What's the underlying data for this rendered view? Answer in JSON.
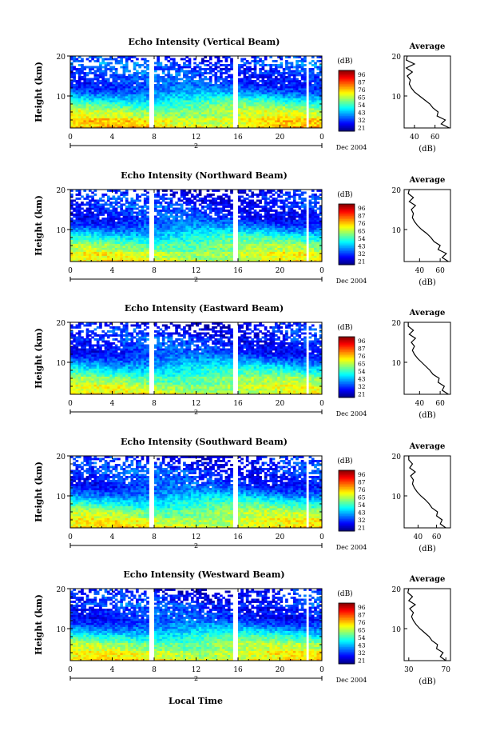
{
  "figure": {
    "xlabel": "Local Time",
    "date_label": "Dec 2004",
    "colorbar_unit": "(dB)",
    "colorbar_ticks": [
      "96",
      "87",
      "76",
      "65",
      "54",
      "43",
      "32",
      "21"
    ],
    "avg_title": "Average",
    "avg_xlabel": "(dB)",
    "ylabel": "Height (km)",
    "day_marker": "2"
  },
  "chart_data": [
    {
      "type": "heatmap",
      "title": "Echo Intensity (Vertical Beam)",
      "ylabel": "Height (km)",
      "xlabel": "Local Time",
      "x_ticks": [
        "0",
        "4",
        "8",
        "12",
        "16",
        "20",
        "0"
      ],
      "xlim": [
        0,
        24
      ],
      "y_ticks": [
        "20",
        "10"
      ],
      "ylim": [
        2,
        20
      ],
      "colorbar": {
        "unit": "dB",
        "range": [
          21,
          96
        ],
        "ticks": [
          "96",
          "87",
          "76",
          "65",
          "54",
          "43",
          "32",
          "21"
        ]
      },
      "data_gaps_hours": [
        [
          7.6,
          8.0
        ],
        [
          15.6,
          16.0
        ],
        [
          22.4,
          22.8
        ]
      ],
      "average_profile": {
        "xlim": [
          30,
          75
        ],
        "x_ticks": [
          "40",
          "60"
        ],
        "xlabel": "(dB)",
        "height_km": [
          2,
          3,
          4,
          5,
          6,
          7,
          8,
          9,
          10,
          11,
          12,
          13,
          14,
          15,
          16,
          17,
          18,
          19,
          20
        ],
        "db": [
          74,
          66,
          70,
          62,
          63,
          58,
          55,
          50,
          45,
          40,
          37,
          35,
          36,
          33,
          38,
          32,
          40,
          32,
          33
        ]
      }
    },
    {
      "type": "heatmap",
      "title": "Echo Intensity (Northward Beam)",
      "ylabel": "Height (km)",
      "xlabel": "Local Time",
      "x_ticks": [
        "0",
        "4",
        "8",
        "12",
        "16",
        "20",
        "0"
      ],
      "xlim": [
        0,
        24
      ],
      "y_ticks": [
        "20",
        "10"
      ],
      "ylim": [
        2,
        20
      ],
      "colorbar": {
        "unit": "dB",
        "range": [
          21,
          96
        ],
        "ticks": [
          "96",
          "87",
          "76",
          "65",
          "54",
          "43",
          "32",
          "21"
        ]
      },
      "data_gaps_hours": [
        [
          7.6,
          8.0
        ],
        [
          15.6,
          16.0
        ],
        [
          22.4,
          22.8
        ]
      ],
      "average_profile": {
        "xlim": [
          25,
          70
        ],
        "x_ticks": [
          "40",
          "60"
        ],
        "xlabel": "(dB)",
        "height_km": [
          2,
          3,
          4,
          5,
          6,
          7,
          8,
          9,
          10,
          11,
          12,
          13,
          14,
          15,
          16,
          17,
          18,
          19,
          20
        ],
        "db": [
          68,
          62,
          66,
          58,
          60,
          54,
          51,
          47,
          42,
          38,
          35,
          33,
          34,
          32,
          36,
          30,
          34,
          29,
          30
        ]
      }
    },
    {
      "type": "heatmap",
      "title": "Echo Intensity (Eastward Beam)",
      "ylabel": "Height (km)",
      "xlabel": "Local Time",
      "x_ticks": [
        "0",
        "4",
        "8",
        "12",
        "16",
        "20",
        "0"
      ],
      "xlim": [
        0,
        24
      ],
      "y_ticks": [
        "20",
        "10"
      ],
      "ylim": [
        2,
        20
      ],
      "colorbar": {
        "unit": "dB",
        "range": [
          21,
          96
        ],
        "ticks": [
          "96",
          "87",
          "76",
          "65",
          "54",
          "43",
          "32",
          "21"
        ]
      },
      "data_gaps_hours": [
        [
          7.6,
          8.0
        ],
        [
          15.6,
          16.0
        ],
        [
          22.4,
          22.8
        ]
      ],
      "average_profile": {
        "xlim": [
          25,
          70
        ],
        "x_ticks": [
          "40",
          "60"
        ],
        "xlabel": "(dB)",
        "height_km": [
          2,
          3,
          4,
          5,
          6,
          7,
          8,
          9,
          10,
          11,
          12,
          13,
          14,
          15,
          16,
          17,
          18,
          19,
          20
        ],
        "db": [
          68,
          62,
          64,
          58,
          59,
          53,
          50,
          46,
          42,
          38,
          35,
          33,
          35,
          32,
          36,
          30,
          34,
          29,
          29
        ]
      }
    },
    {
      "type": "heatmap",
      "title": "Echo Intensity (Southward Beam)",
      "ylabel": "Height (km)",
      "xlabel": "Local Time",
      "x_ticks": [
        "0",
        "4",
        "8",
        "12",
        "16",
        "20",
        "0"
      ],
      "xlim": [
        0,
        24
      ],
      "y_ticks": [
        "20",
        "10"
      ],
      "ylim": [
        2,
        20
      ],
      "colorbar": {
        "unit": "dB",
        "range": [
          21,
          96
        ],
        "ticks": [
          "96",
          "87",
          "76",
          "65",
          "54",
          "43",
          "32",
          "21"
        ]
      },
      "data_gaps_hours": [
        [
          7.6,
          8.0
        ],
        [
          15.6,
          16.0
        ],
        [
          22.4,
          22.8
        ]
      ],
      "average_profile": {
        "xlim": [
          25,
          75
        ],
        "x_ticks": [
          "40",
          "60"
        ],
        "xlabel": "(dB)",
        "height_km": [
          2,
          3,
          4,
          5,
          6,
          7,
          8,
          9,
          10,
          11,
          12,
          13,
          14,
          15,
          16,
          17,
          18,
          19,
          20
        ],
        "db": [
          70,
          64,
          66,
          60,
          61,
          55,
          52,
          48,
          43,
          39,
          36,
          34,
          35,
          32,
          37,
          31,
          34,
          30,
          30
        ]
      }
    },
    {
      "type": "heatmap",
      "title": "Echo Intensity (Westward Beam)",
      "ylabel": "Height (km)",
      "xlabel": "Local Time",
      "x_ticks": [
        "0",
        "4",
        "8",
        "12",
        "16",
        "20",
        "0"
      ],
      "xlim": [
        0,
        24
      ],
      "y_ticks": [
        "20",
        "10"
      ],
      "ylim": [
        2,
        20
      ],
      "colorbar": {
        "unit": "dB",
        "range": [
          21,
          96
        ],
        "ticks": [
          "96",
          "87",
          "76",
          "65",
          "54",
          "43",
          "32",
          "21"
        ]
      },
      "data_gaps_hours": [
        [
          7.6,
          8.0
        ],
        [
          15.6,
          16.0
        ],
        [
          22.4,
          22.8
        ]
      ],
      "average_profile": {
        "xlim": [
          25,
          75
        ],
        "x_ticks": [
          "30",
          "70"
        ],
        "xlabel": "(dB)",
        "height_km": [
          2,
          3,
          4,
          5,
          6,
          7,
          8,
          9,
          10,
          11,
          12,
          13,
          14,
          15,
          16,
          17,
          18,
          19,
          20
        ],
        "db": [
          70,
          64,
          67,
          60,
          61,
          55,
          52,
          47,
          42,
          38,
          35,
          33,
          35,
          31,
          37,
          30,
          34,
          29,
          30
        ]
      }
    }
  ]
}
